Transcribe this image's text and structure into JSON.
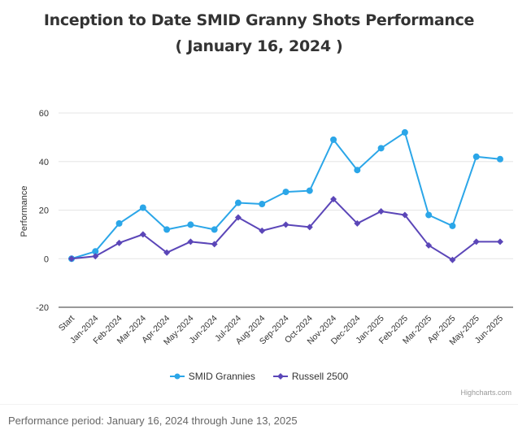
{
  "title": "Inception to Date SMID Granny Shots Performance",
  "subtitle": "( January 16, 2024 )",
  "footer": "Performance period: January 16, 2024 through June 13, 2025",
  "credits": "Highcharts.com",
  "chart_data": {
    "type": "line",
    "title": "Inception to Date SMID Granny Shots Performance",
    "subtitle": "( January 16, 2024 )",
    "xlabel": "",
    "ylabel": "Performance",
    "ylim": [
      -20,
      60
    ],
    "yticks": [
      -20,
      0,
      20,
      40,
      60
    ],
    "categories": [
      "Start",
      "Jan-2024",
      "Feb-2024",
      "Mar-2024",
      "Apr-2024",
      "May-2024",
      "Jun-2024",
      "Jul-2024",
      "Aug-2024",
      "Sep-2024",
      "Oct-2024",
      "Nov-2024",
      "Dec-2024",
      "Jan-2025",
      "Feb-2025",
      "Mar-2025",
      "Apr-2025",
      "May-2025",
      "Jun-2025"
    ],
    "series": [
      {
        "name": "SMID Grannies",
        "color": "#2ba6e8",
        "marker": "circle",
        "values": [
          0,
          3,
          14.5,
          21,
          12,
          14,
          12,
          23,
          22.5,
          27.5,
          28,
          49,
          36.5,
          45.5,
          52,
          18,
          13.5,
          42,
          41
        ]
      },
      {
        "name": "Russell 2500",
        "color": "#5b46b8",
        "marker": "diamond",
        "values": [
          0,
          1,
          6.5,
          10,
          2.5,
          7,
          6,
          17,
          11.5,
          14,
          13,
          24.5,
          14.5,
          19.5,
          18,
          5.5,
          -0.5,
          7,
          7
        ]
      }
    ],
    "legend_position": "bottom-center",
    "grid": true
  }
}
